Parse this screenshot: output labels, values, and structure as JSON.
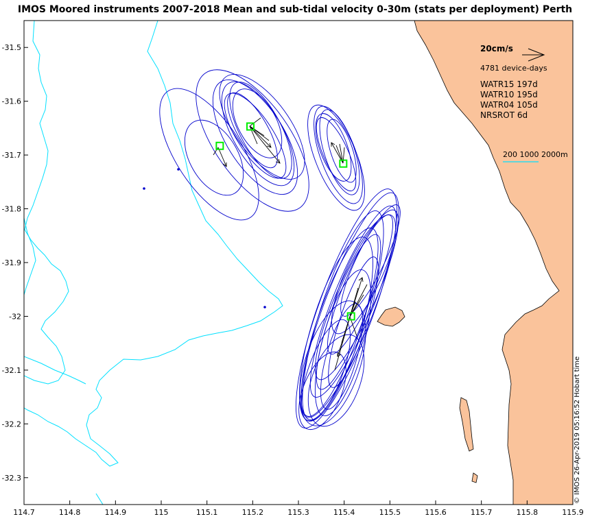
{
  "title": "IMOS Moored instruments 2007-2018 Mean and sub-tidal velocity 0-30m (stats per deployment) Perth",
  "credit": "© IMOS 26-Apr-2019 05:16:52 Hobart time",
  "axes": {
    "x_ticks": [
      "114.7",
      "114.8",
      "114.9",
      "115",
      "115.1",
      "115.2",
      "115.3",
      "115.4",
      "115.5",
      "115.6",
      "115.7",
      "115.8",
      "115.9"
    ],
    "y_ticks": [
      "-31.5",
      "-31.6",
      "-31.7",
      "-31.8",
      "-31.9",
      "-32",
      "-32.1",
      "-32.2",
      "-32.3"
    ],
    "x_range": [
      114.7,
      115.9
    ],
    "y_range": [
      -32.35,
      -31.45
    ]
  },
  "legend": {
    "scale_label": "20cm/s",
    "device_days": "4781 device-days",
    "sites": [
      "WATR15 197d",
      "WATR10 195d",
      "WATR04 105d",
      "NRSROT 6d"
    ],
    "contours_label": "200 1000 2000m"
  },
  "colors": {
    "land": "#fac39b",
    "contour": "#00e0ff",
    "ellipse": "#0000cc",
    "marker": "#00ee00",
    "arrow": "#000000"
  },
  "moorings": [
    {
      "name": "WATR15",
      "lon": 115.128,
      "lat": -31.683
    },
    {
      "name": "WATR10",
      "lon": 115.195,
      "lat": -31.647
    },
    {
      "name": "WATR04",
      "lon": 115.398,
      "lat": -31.716
    },
    {
      "name": "NRSROT",
      "lon": 115.415,
      "lat": -32.0
    }
  ]
}
